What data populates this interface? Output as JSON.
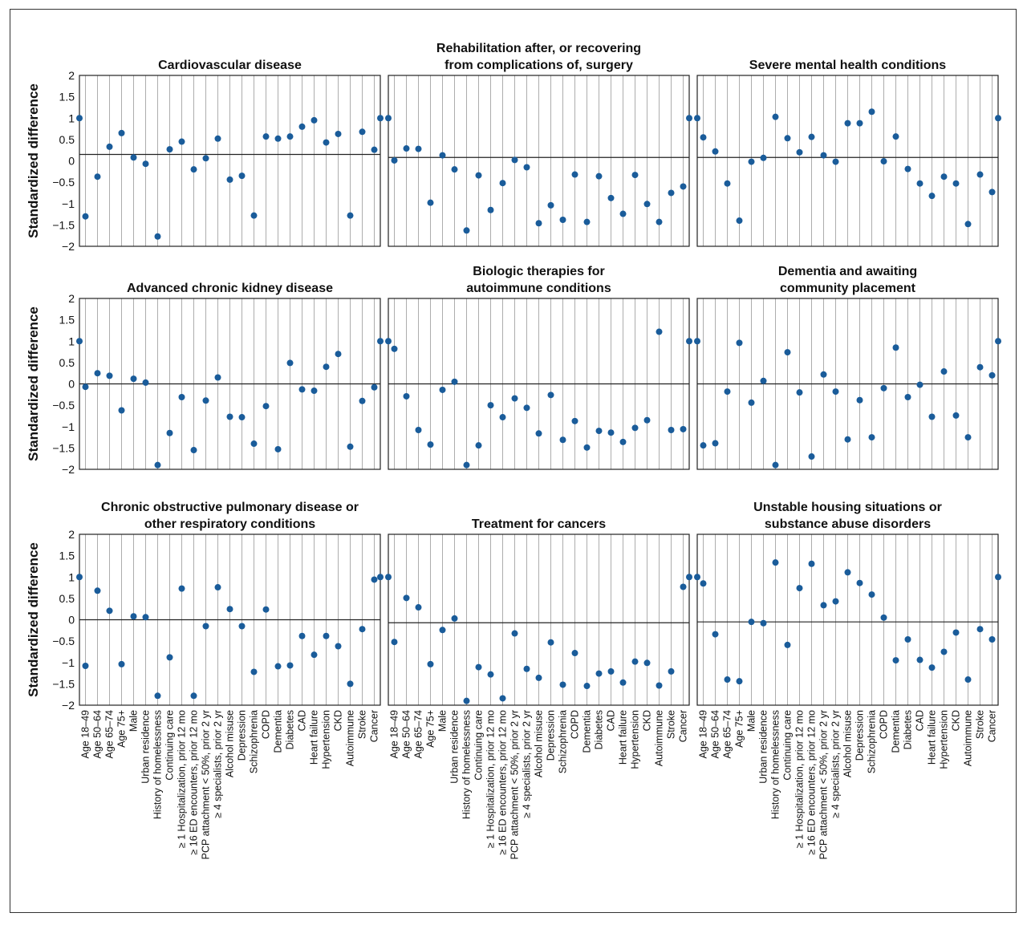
{
  "chart_data": {
    "type": "scatter",
    "ylabel": "Standardized difference",
    "ylim": [
      -2,
      2
    ],
    "yticks": [
      "2",
      "1.5",
      "1",
      "0.5",
      "0",
      "−0.5",
      "−1",
      "−1.5",
      "−2"
    ],
    "grid": "vertical lines at each category",
    "marker_color": "#1a5c9a",
    "categories": [
      "Age 18–49",
      "Age 50–64",
      "Age 65–74",
      "Age 75+",
      "Male",
      "Urban residence",
      "History of homelessness",
      "Continuing care",
      "≥ 1 Hospitalization, prior 12 mo",
      "≥ 16 ED encounters, prior 12 mo",
      "PCP attachment < 50%, prior 2 yr",
      "≥ 4 specialists, prior 2 yr",
      "Alcohol misuse",
      "Depression",
      "Schizophrenia",
      "COPD",
      "Dementia",
      "Diabetes",
      "CAD",
      "Heart failure",
      "Hypertension",
      "CKD",
      "Autoimmune",
      "Stroke",
      "Cancer"
    ],
    "panels": [
      {
        "title": [
          "Cardiovascular disease"
        ],
        "reference": 0.15,
        "edge_markers": 1.0,
        "values": [
          -1.3,
          -0.37,
          0.33,
          0.65,
          0.08,
          -0.07,
          -1.77,
          0.27,
          0.45,
          -0.2,
          0.06,
          0.52,
          -0.44,
          -0.35,
          -1.28,
          0.57,
          0.52,
          0.57,
          0.8,
          0.95,
          0.43,
          0.63,
          -1.28,
          0.68,
          0.26
        ]
      },
      {
        "title": [
          "Rehabilitation after, or recovering",
          "from complications of, surgery"
        ],
        "reference": 0.08,
        "edge_markers": 1.0,
        "values": [
          0.01,
          0.29,
          0.28,
          -0.98,
          0.13,
          -0.2,
          -1.63,
          -0.34,
          -1.15,
          -0.52,
          0.02,
          -0.15,
          -1.46,
          -1.04,
          -1.38,
          -0.32,
          -1.43,
          -0.36,
          -0.87,
          -1.24,
          -0.33,
          -1.01,
          -1.43,
          -0.75,
          -0.6
        ]
      },
      {
        "title": [
          "Severe mental health conditions"
        ],
        "reference": 0.08,
        "edge_markers": 1.0,
        "values": [
          0.55,
          0.22,
          -0.53,
          -1.4,
          -0.02,
          0.07,
          1.03,
          0.53,
          0.2,
          0.56,
          0.13,
          -0.02,
          0.88,
          0.88,
          1.15,
          -0.01,
          0.57,
          -0.19,
          -0.53,
          -0.82,
          -0.37,
          -0.53,
          -1.48,
          -0.32,
          -0.73
        ]
      },
      {
        "title": [
          "Advanced chronic kidney disease"
        ],
        "reference": 0.0,
        "edge_markers": 1.0,
        "values": [
          -0.07,
          0.25,
          0.19,
          -0.62,
          0.12,
          0.03,
          -1.9,
          -1.15,
          -0.31,
          -1.55,
          -0.39,
          0.15,
          -0.77,
          -0.78,
          -1.4,
          -0.52,
          -1.53,
          0.49,
          -0.13,
          -0.16,
          0.4,
          0.7,
          -1.47,
          -0.4,
          -0.08
        ]
      },
      {
        "title": [
          "Biologic therapies for",
          "autoimmune conditions"
        ],
        "reference": 0.0,
        "edge_markers": 1.0,
        "values": [
          0.82,
          -0.29,
          -1.08,
          -1.42,
          -0.14,
          0.05,
          -1.9,
          -1.44,
          -0.5,
          -0.78,
          -0.34,
          -0.56,
          -1.16,
          -0.26,
          -1.31,
          -0.87,
          -1.49,
          -1.1,
          -1.14,
          -1.36,
          -1.03,
          -0.85,
          1.22,
          -1.08,
          -1.06
        ]
      },
      {
        "title": [
          "Dementia and awaiting",
          "community placement"
        ],
        "reference": 0.0,
        "edge_markers": 1.0,
        "values": [
          -1.44,
          -1.39,
          -0.18,
          0.96,
          -0.44,
          0.07,
          -1.9,
          0.74,
          -0.2,
          -1.7,
          0.22,
          -0.18,
          -1.3,
          -0.38,
          -1.25,
          -0.1,
          0.85,
          -0.31,
          -0.02,
          -0.77,
          0.29,
          -0.74,
          -1.25,
          0.39,
          0.2
        ]
      },
      {
        "title": [
          "Chronic obstructive pulmonary disease or",
          "other respiratory conditions"
        ],
        "reference": 0.0,
        "edge_markers": 1.0,
        "values": [
          -1.08,
          0.68,
          0.21,
          -1.04,
          0.08,
          0.06,
          -1.78,
          -0.88,
          0.73,
          -1.78,
          -0.15,
          0.76,
          0.25,
          -0.15,
          -1.22,
          0.24,
          -1.09,
          -1.07,
          -0.38,
          -0.82,
          -0.38,
          -0.62,
          -1.5,
          -0.22,
          0.94
        ]
      },
      {
        "title": [
          "Treatment for cancers"
        ],
        "reference": -0.07,
        "edge_markers": 1.0,
        "values": [
          -0.52,
          0.51,
          0.29,
          -1.04,
          -0.24,
          0.03,
          -1.9,
          -1.11,
          -1.28,
          -1.84,
          -0.32,
          -1.15,
          -1.36,
          -0.53,
          -1.52,
          -0.78,
          -1.55,
          -1.26,
          -1.21,
          -1.47,
          -0.98,
          -1.01,
          -1.54,
          -1.21,
          0.77
        ]
      },
      {
        "title": [
          "Unstable housing situations or",
          "substance abuse disorders"
        ],
        "reference": -0.05,
        "edge_markers": 1.0,
        "values": [
          0.85,
          -0.34,
          -1.4,
          -1.44,
          -0.05,
          -0.08,
          1.34,
          -0.59,
          0.74,
          1.31,
          0.34,
          0.43,
          1.11,
          0.86,
          0.59,
          0.05,
          -0.95,
          -0.46,
          -0.94,
          -1.12,
          -0.75,
          -0.3,
          -1.4,
          -0.22,
          -0.46
        ]
      }
    ]
  }
}
